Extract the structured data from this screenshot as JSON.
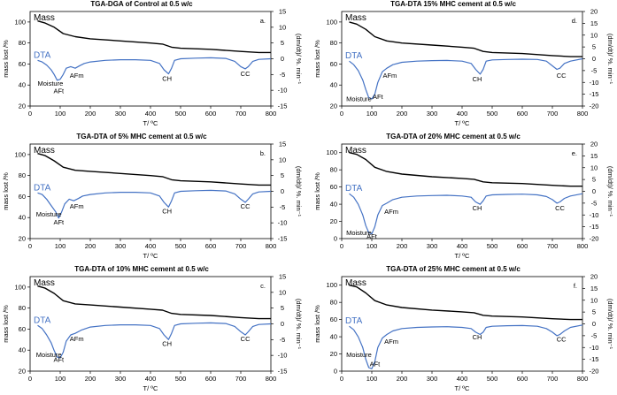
{
  "chart_data": [
    {
      "type": "line",
      "title": "TGA-DGA of Control at 0.5 w/c",
      "panel_label": "a.",
      "xlabel": "T/ ºC",
      "ylabel_left": "mass lost /%",
      "ylabel_right": "(dm/dt)/ %. min⁻¹",
      "xlim": [
        0,
        800
      ],
      "xticks": [
        "0",
        "100",
        "200",
        "300",
        "400",
        "500",
        "600",
        "700",
        "800"
      ],
      "ylim_left": [
        20,
        110
      ],
      "yticks_left": [
        "20",
        "40",
        "60",
        "80",
        "100"
      ],
      "ylim_right": [
        -15,
        15
      ],
      "yticks_right": [
        "-15",
        "-10",
        "-5",
        "0",
        "5",
        "10",
        "15"
      ],
      "series": [
        {
          "name": "Mass",
          "axis": "left",
          "x": [
            25,
            50,
            80,
            110,
            150,
            200,
            300,
            400,
            440,
            470,
            500,
            600,
            700,
            760,
            800
          ],
          "y": [
            101,
            99,
            95,
            89,
            86,
            84,
            82,
            80,
            79,
            76,
            75,
            74,
            72,
            71,
            71
          ]
        },
        {
          "name": "DTA",
          "axis": "right",
          "x": [
            25,
            40,
            55,
            70,
            80,
            90,
            100,
            110,
            120,
            135,
            150,
            165,
            180,
            200,
            250,
            300,
            350,
            400,
            430,
            445,
            460,
            470,
            480,
            500,
            550,
            600,
            650,
            680,
            700,
            715,
            725,
            740,
            760,
            800
          ],
          "y": [
            -0.5,
            -1,
            -2,
            -3.5,
            -5,
            -6.8,
            -6.5,
            -5,
            -3,
            -2.5,
            -3,
            -2.2,
            -1.5,
            -1,
            -0.5,
            -0.3,
            -0.3,
            -0.5,
            -1.5,
            -3.5,
            -4.8,
            -3,
            -0.5,
            0,
            0.2,
            0.3,
            0.1,
            -0.8,
            -2.5,
            -3.2,
            -2.5,
            -0.8,
            -0.2,
            0
          ]
        }
      ],
      "series_labels": [
        "Mass",
        "DTA"
      ],
      "annotations": [
        {
          "text": "Moisture",
          "x": 25,
          "y": -8.5
        },
        {
          "text": "AFt",
          "x": 95,
          "y": -11
        },
        {
          "text": "AFm",
          "x": 155,
          "y": -6
        },
        {
          "text": "CH",
          "x": 455,
          "y": -7
        },
        {
          "text": "CC",
          "x": 715,
          "y": -5.5
        }
      ]
    },
    {
      "type": "line",
      "title": "TGA-DTA of 5% MHC cement at 0.5 w/c",
      "panel_label": "b.",
      "xlabel": "T/ ºC",
      "ylabel_left": "mass lost /%",
      "ylabel_right": "(dm/dt)/ %. min⁻¹",
      "xlim": [
        0,
        800
      ],
      "xticks": [
        "0",
        "100",
        "200",
        "300",
        "400",
        "500",
        "600",
        "700",
        "800"
      ],
      "ylim_left": [
        20,
        110
      ],
      "yticks_left": [
        "20",
        "40",
        "60",
        "80",
        "100"
      ],
      "ylim_right": [
        -15,
        15
      ],
      "yticks_right": [
        "-15",
        "-10",
        "-5",
        "0",
        "5",
        "10",
        "15"
      ],
      "series": [
        {
          "name": "Mass",
          "axis": "left",
          "x": [
            25,
            50,
            80,
            110,
            150,
            200,
            300,
            400,
            440,
            470,
            500,
            600,
            700,
            760,
            800
          ],
          "y": [
            101,
            99,
            94,
            88,
            85,
            84,
            82,
            80,
            79,
            76,
            75,
            74,
            72,
            71,
            71
          ]
        },
        {
          "name": "DTA",
          "axis": "right",
          "x": [
            25,
            40,
            55,
            70,
            85,
            95,
            105,
            115,
            130,
            145,
            160,
            175,
            200,
            250,
            300,
            350,
            400,
            430,
            445,
            460,
            470,
            480,
            500,
            550,
            600,
            650,
            680,
            700,
            715,
            725,
            740,
            760,
            800
          ],
          "y": [
            -0.5,
            -1,
            -2.5,
            -4.5,
            -6.5,
            -8.5,
            -6.5,
            -4,
            -2.5,
            -3,
            -2.3,
            -1.5,
            -1,
            -0.5,
            -0.3,
            -0.3,
            -0.5,
            -1.5,
            -3.5,
            -5,
            -3,
            -0.5,
            0,
            0.2,
            0.3,
            0.1,
            -0.8,
            -2.5,
            -3.5,
            -2.5,
            -0.8,
            -0.2,
            0
          ]
        }
      ],
      "series_labels": [
        "Mass",
        "DTA"
      ],
      "annotations": [
        {
          "text": "Moisture",
          "x": 20,
          "y": -8
        },
        {
          "text": "AFt",
          "x": 95,
          "y": -10.5
        },
        {
          "text": "AFm",
          "x": 155,
          "y": -5.5
        },
        {
          "text": "CH",
          "x": 455,
          "y": -7
        },
        {
          "text": "CC",
          "x": 715,
          "y": -5.5
        }
      ]
    },
    {
      "type": "line",
      "title": "TGA-DTA of 10% MHC  cement at 0.5 w/c",
      "panel_label": "c.",
      "xlabel": "T/ ºC",
      "ylabel_left": "mass lost /%",
      "ylabel_right": "(dm/dt)/ %. min⁻¹",
      "xlim": [
        0,
        800
      ],
      "xticks": [
        "0",
        "100",
        "200",
        "300",
        "400",
        "500",
        "600",
        "700",
        "800"
      ],
      "ylim_left": [
        20,
        110
      ],
      "yticks_left": [
        "20",
        "40",
        "60",
        "80",
        "100"
      ],
      "ylim_right": [
        -15,
        15
      ],
      "yticks_right": [
        "-15",
        "-10",
        "-5",
        "0",
        "5",
        "10",
        "15"
      ],
      "series": [
        {
          "name": "Mass",
          "axis": "left",
          "x": [
            25,
            50,
            80,
            110,
            150,
            200,
            300,
            400,
            440,
            470,
            500,
            600,
            700,
            760,
            800
          ],
          "y": [
            101,
            99,
            94,
            87,
            84,
            83,
            81,
            79,
            78,
            75,
            74,
            73,
            71,
            70,
            70
          ]
        },
        {
          "name": "DTA",
          "axis": "right",
          "x": [
            25,
            40,
            55,
            70,
            80,
            90,
            100,
            110,
            120,
            135,
            150,
            170,
            200,
            250,
            300,
            350,
            400,
            430,
            445,
            460,
            470,
            480,
            500,
            550,
            600,
            650,
            680,
            700,
            715,
            725,
            740,
            760,
            800
          ],
          "y": [
            -0.5,
            -1.5,
            -3.5,
            -6,
            -8.5,
            -10.5,
            -10.8,
            -9,
            -5.5,
            -3.5,
            -3,
            -2,
            -1,
            -0.5,
            -0.3,
            -0.3,
            -0.5,
            -1.5,
            -3.5,
            -5,
            -3,
            -0.5,
            0,
            0.2,
            0.3,
            0.1,
            -0.8,
            -2.5,
            -3.5,
            -2.5,
            -0.8,
            -0.2,
            0
          ]
        }
      ],
      "series_labels": [
        "Mass",
        "DTA"
      ],
      "annotations": [
        {
          "text": "Moisture",
          "x": 20,
          "y": -10.5
        },
        {
          "text": "AFt",
          "x": 95,
          "y": -12
        },
        {
          "text": "AFm",
          "x": 155,
          "y": -5.5
        },
        {
          "text": "CH",
          "x": 455,
          "y": -7
        },
        {
          "text": "CC",
          "x": 715,
          "y": -5.5
        }
      ]
    },
    {
      "type": "line",
      "title": "TGA-DTA  15% MHC cement at 0.5 w/c",
      "panel_label": "d.",
      "xlabel": "T/ ºC",
      "ylabel_left": "mass lost /%",
      "ylabel_right": "(dm/dt)/ %. min⁻¹",
      "xlim": [
        0,
        800
      ],
      "xticks": [
        "0",
        "100",
        "200",
        "300",
        "400",
        "500",
        "600",
        "700",
        "800"
      ],
      "ylim_left": [
        20,
        110
      ],
      "yticks_left": [
        "20",
        "40",
        "60",
        "80",
        "100"
      ],
      "ylim_right": [
        -20,
        20
      ],
      "yticks_right": [
        "-20",
        "-15",
        "-10",
        "-5",
        "0",
        "5",
        "10",
        "15",
        "20"
      ],
      "series": [
        {
          "name": "Mass",
          "axis": "left",
          "x": [
            25,
            50,
            80,
            110,
            150,
            200,
            300,
            400,
            440,
            470,
            500,
            600,
            700,
            760,
            800
          ],
          "y": [
            100,
            98,
            93,
            86,
            82,
            80,
            78,
            76,
            75,
            72,
            71,
            70,
            68,
            67,
            67
          ]
        },
        {
          "name": "DTA",
          "axis": "right",
          "x": [
            25,
            40,
            55,
            70,
            80,
            90,
            100,
            110,
            120,
            135,
            150,
            170,
            200,
            250,
            300,
            350,
            400,
            430,
            445,
            460,
            470,
            480,
            500,
            550,
            600,
            650,
            680,
            700,
            715,
            725,
            740,
            760,
            800
          ],
          "y": [
            -1,
            -2.5,
            -5,
            -9,
            -13,
            -16.5,
            -17,
            -15,
            -10,
            -5.5,
            -4,
            -2.5,
            -1.5,
            -1,
            -0.8,
            -0.7,
            -1,
            -2,
            -4.5,
            -6.5,
            -4.5,
            -1,
            -0.5,
            -0.3,
            -0.2,
            -0.3,
            -1,
            -3,
            -4.5,
            -4,
            -2,
            -1,
            0
          ]
        }
      ],
      "series_labels": [
        "Mass",
        "DTA"
      ],
      "annotations": [
        {
          "text": "Moisture",
          "x": 15,
          "y": -18
        },
        {
          "text": "AFt",
          "x": 120,
          "y": -17
        },
        {
          "text": "AFm",
          "x": 160,
          "y": -8
        },
        {
          "text": "CH",
          "x": 450,
          "y": -9.5
        },
        {
          "text": "CC",
          "x": 730,
          "y": -8
        }
      ]
    },
    {
      "type": "line",
      "title": "TGA-DTA of 20% MHC cement at 0.5 w/c",
      "panel_label": "e.",
      "xlabel": "T/ ºC",
      "ylabel_left": "mass lost /%",
      "ylabel_right": "(dm/dt)/ %. min⁻¹",
      "xlim": [
        0,
        800
      ],
      "xticks": [
        "0",
        "100",
        "200",
        "300",
        "400",
        "500",
        "600",
        "700",
        "800"
      ],
      "ylim_left": [
        0,
        110
      ],
      "yticks_left": [
        "0",
        "20",
        "40",
        "60",
        "80",
        "100"
      ],
      "ylim_right": [
        -20,
        20
      ],
      "yticks_right": [
        "-20",
        "-15",
        "-10",
        "-5",
        "0",
        "5",
        "10",
        "15",
        "20"
      ],
      "series": [
        {
          "name": "Mass",
          "axis": "left",
          "x": [
            25,
            50,
            80,
            110,
            150,
            200,
            300,
            400,
            440,
            470,
            500,
            600,
            700,
            760,
            800
          ],
          "y": [
            100,
            98,
            92,
            83,
            78,
            75,
            72,
            70,
            69,
            66,
            65,
            64,
            62,
            61,
            61
          ]
        },
        {
          "name": "DTA",
          "axis": "right",
          "x": [
            25,
            40,
            55,
            70,
            80,
            90,
            100,
            110,
            120,
            135,
            150,
            170,
            200,
            250,
            300,
            350,
            400,
            430,
            445,
            460,
            470,
            480,
            500,
            550,
            600,
            650,
            680,
            700,
            715,
            725,
            740,
            760,
            800
          ],
          "y": [
            -1,
            -2.5,
            -5.5,
            -10,
            -14.5,
            -17.5,
            -18,
            -15,
            -10,
            -6,
            -5,
            -3.5,
            -2.5,
            -2,
            -1.8,
            -1.7,
            -2,
            -2.5,
            -4.5,
            -5.5,
            -4,
            -2,
            -1.5,
            -1.3,
            -1.2,
            -1.5,
            -2.2,
            -3.5,
            -5,
            -4.5,
            -3,
            -2,
            -1
          ]
        }
      ],
      "series_labels": [
        "Mass",
        "DTA"
      ],
      "annotations": [
        {
          "text": "Moisture",
          "x": 15,
          "y": -18.5
        },
        {
          "text": "AFt",
          "x": 100,
          "y": -20
        },
        {
          "text": "AFm",
          "x": 165,
          "y": -9.5
        },
        {
          "text": "CH",
          "x": 450,
          "y": -8
        },
        {
          "text": "CC",
          "x": 725,
          "y": -8
        }
      ]
    },
    {
      "type": "line",
      "title": "TGA-DTA of 25% MHC cement at 0.5 w/c",
      "panel_label": "f.",
      "xlabel": "T/ ºC",
      "ylabel_left": "mass lost /%",
      "ylabel_right": "(dm/dt)/ %. min⁻¹",
      "xlim": [
        0,
        800
      ],
      "xticks": [
        "0",
        "100",
        "200",
        "300",
        "400",
        "500",
        "600",
        "700",
        "800"
      ],
      "ylim_left": [
        0,
        110
      ],
      "yticks_left": [
        "0",
        "20",
        "40",
        "60",
        "80",
        "100"
      ],
      "ylim_right": [
        -20,
        20
      ],
      "yticks_right": [
        "-20",
        "-15",
        "-10",
        "-5",
        "0",
        "5",
        "10",
        "15",
        "20"
      ],
      "series": [
        {
          "name": "Mass",
          "axis": "left",
          "x": [
            25,
            50,
            80,
            110,
            150,
            200,
            300,
            400,
            440,
            470,
            500,
            600,
            700,
            760,
            800
          ],
          "y": [
            100,
            98,
            91,
            82,
            77,
            74,
            71,
            69,
            68,
            65,
            64,
            63,
            61,
            60,
            60
          ]
        },
        {
          "name": "DTA",
          "axis": "right",
          "x": [
            25,
            40,
            55,
            70,
            80,
            90,
            100,
            110,
            120,
            135,
            150,
            170,
            200,
            250,
            300,
            350,
            400,
            430,
            445,
            460,
            470,
            480,
            500,
            550,
            600,
            650,
            680,
            700,
            715,
            725,
            740,
            760,
            800
          ],
          "y": [
            -1,
            -2.5,
            -5.5,
            -10,
            -15,
            -18.5,
            -19,
            -16,
            -10,
            -6,
            -4.5,
            -3,
            -2,
            -1.5,
            -1.3,
            -1.2,
            -1.5,
            -2,
            -3.5,
            -4.5,
            -3.5,
            -1.5,
            -1,
            -0.8,
            -0.7,
            -1,
            -2,
            -3.5,
            -5,
            -4.5,
            -3,
            -1.5,
            -0.5
          ]
        }
      ],
      "series_labels": [
        "Mass",
        "DTA"
      ],
      "annotations": [
        {
          "text": "Moisture",
          "x": 15,
          "y": -14
        },
        {
          "text": "AFt",
          "x": 110,
          "y": -18
        },
        {
          "text": "AFm",
          "x": 165,
          "y": -8.5
        },
        {
          "text": "CH",
          "x": 450,
          "y": -6.5
        },
        {
          "text": "CC",
          "x": 730,
          "y": -7.5
        }
      ]
    }
  ],
  "colors": {
    "mass": "#000000",
    "dta": "#4472c4"
  }
}
